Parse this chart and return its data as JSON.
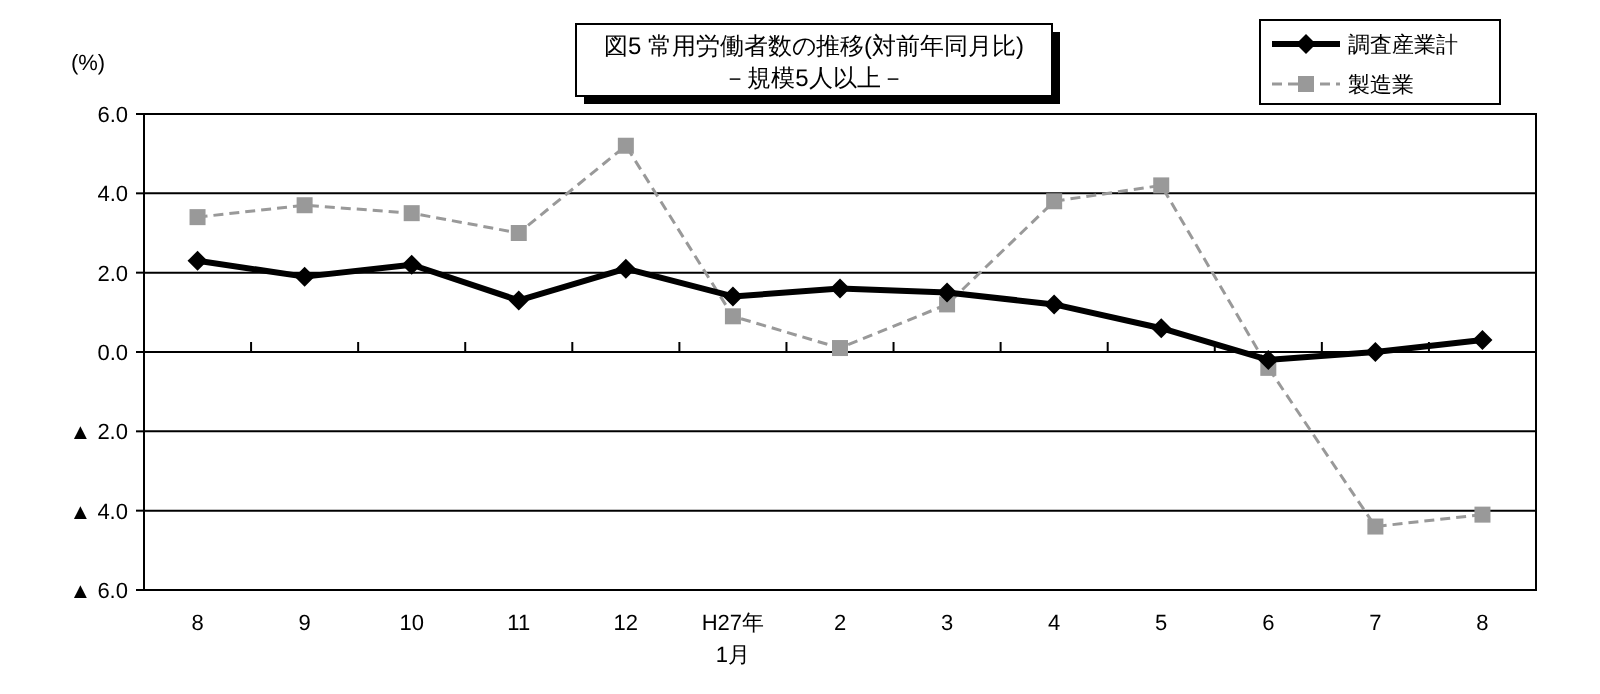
{
  "chart_data": {
    "type": "line",
    "title": "図5 常用労働者数の推移(対前年同月比)",
    "subtitle": "－規模5人以上－",
    "ylabel": "(%)",
    "categories": [
      "8",
      "9",
      "10",
      "11",
      "12",
      "H27年\n1月",
      "2",
      "3",
      "4",
      "5",
      "6",
      "7",
      "8"
    ],
    "series": [
      {
        "name": "調査産業計",
        "color": "#000000",
        "marker": "diamond",
        "line_style": "solid",
        "values": [
          2.3,
          1.9,
          2.2,
          1.3,
          2.1,
          1.4,
          1.6,
          1.5,
          1.2,
          0.6,
          -0.2,
          0.0,
          0.3
        ]
      },
      {
        "name": "製造業",
        "color": "#999999",
        "marker": "square",
        "line_style": "dashed",
        "values": [
          3.4,
          3.7,
          3.5,
          3.0,
          5.2,
          0.9,
          0.1,
          1.2,
          3.8,
          4.2,
          -0.4,
          -4.4,
          -4.1
        ]
      }
    ],
    "ylim": [
      -6,
      6
    ],
    "yticks": [
      {
        "value": 6,
        "label": "6.0"
      },
      {
        "value": 4,
        "label": "4.0"
      },
      {
        "value": 2,
        "label": "2.0"
      },
      {
        "value": 0,
        "label": "0.0"
      },
      {
        "value": -2,
        "label": "▲ 2.0"
      },
      {
        "value": -4,
        "label": "▲ 4.0"
      },
      {
        "value": -6,
        "label": "▲ 6.0"
      }
    ],
    "grid": "y",
    "legend": "top right"
  }
}
